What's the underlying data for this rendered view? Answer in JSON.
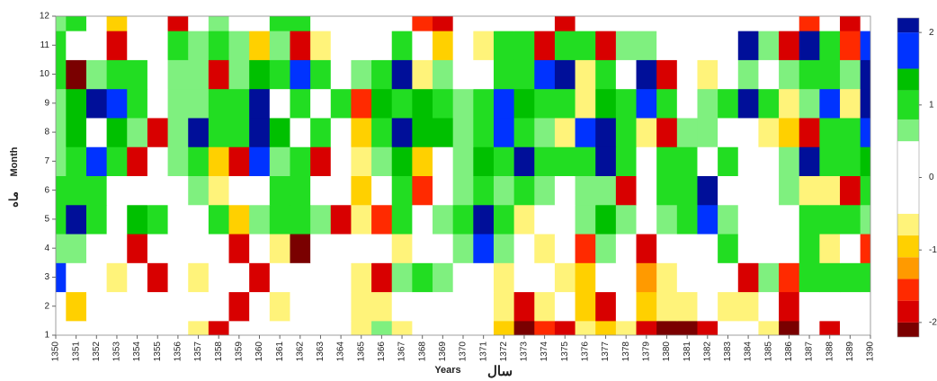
{
  "chart_data": {
    "type": "contour",
    "x_label": "Years",
    "x_label_fa": "سال",
    "y_label": "Month",
    "y_label_fa": "ماه",
    "x": [
      1350,
      1351,
      1352,
      1353,
      1354,
      1355,
      1356,
      1357,
      1358,
      1359,
      1360,
      1361,
      1362,
      1363,
      1364,
      1365,
      1366,
      1367,
      1368,
      1369,
      1370,
      1371,
      1372,
      1373,
      1374,
      1375,
      1376,
      1377,
      1378,
      1379,
      1380,
      1381,
      1382,
      1383,
      1384,
      1385,
      1386,
      1387,
      1388,
      1389,
      1390
    ],
    "y": [
      1,
      2,
      3,
      4,
      5,
      6,
      7,
      8,
      9,
      10,
      11,
      12
    ],
    "xlim": [
      1350,
      1390
    ],
    "ylim": [
      1,
      12
    ],
    "xticks": [
      1350,
      1351,
      1352,
      1353,
      1354,
      1355,
      1356,
      1357,
      1358,
      1359,
      1360,
      1361,
      1362,
      1363,
      1364,
      1365,
      1366,
      1367,
      1368,
      1369,
      1370,
      1371,
      1372,
      1373,
      1374,
      1375,
      1376,
      1377,
      1378,
      1379,
      1380,
      1381,
      1382,
      1383,
      1384,
      1385,
      1386,
      1387,
      1388,
      1389,
      1390
    ],
    "yticks": [
      1,
      2,
      3,
      4,
      5,
      6,
      7,
      8,
      9,
      10,
      11,
      12
    ],
    "z": [
      [
        0,
        0,
        0,
        0,
        0,
        0,
        0,
        -0.8,
        -2,
        0,
        0,
        0,
        0,
        0,
        0,
        -0.8,
        0.6,
        -0.7,
        0,
        0,
        0,
        0,
        -1,
        -2.5,
        -1.5,
        -2,
        -0.7,
        -1,
        -0.8,
        -2,
        -2.5,
        -2.5,
        -2,
        0,
        0,
        -0.8,
        -2.5,
        0,
        -2,
        0,
        0
      ],
      [
        0,
        -1,
        0,
        0,
        0,
        0,
        0,
        0,
        0,
        -2,
        0,
        -0.7,
        0,
        0,
        0,
        -0.8,
        -0.7,
        0,
        0,
        0,
        0,
        0,
        -0.6,
        -2,
        -0.7,
        0,
        -1,
        -2,
        0,
        -1,
        -0.8,
        -0.7,
        0,
        -0.7,
        -0.7,
        0,
        -2,
        0,
        0,
        0,
        0
      ],
      [
        1.5,
        0,
        0,
        -0.6,
        0,
        -2,
        0,
        -0.7,
        0,
        0,
        -2,
        0,
        0,
        0,
        0,
        -0.8,
        -2,
        0.7,
        0.8,
        0.7,
        0,
        0,
        -0.8,
        0,
        0,
        -0.7,
        -1,
        0,
        0,
        -1.2,
        -0.8,
        0,
        0,
        0,
        -2,
        0.7,
        -1.5,
        1,
        0.8,
        1,
        1
      ],
      [
        0.7,
        0.6,
        0,
        0,
        -2,
        0,
        0,
        0,
        0,
        -2,
        0,
        -0.7,
        -2.2,
        0,
        0,
        0,
        0,
        -0.8,
        0,
        0,
        0.6,
        1.5,
        0.7,
        0,
        -0.6,
        0,
        -1.5,
        0.7,
        0,
        -2,
        0,
        0,
        0,
        0.8,
        0,
        0,
        0,
        0.8,
        -0.8,
        0,
        -1.5
      ],
      [
        1,
        2,
        0.8,
        0,
        1.2,
        1,
        0,
        0,
        1,
        -1,
        0.7,
        0.8,
        1,
        0.7,
        -2,
        -0.7,
        -1.5,
        1,
        0,
        0.6,
        1,
        2,
        1,
        -0.6,
        0,
        0,
        0.7,
        1.2,
        0.7,
        0,
        0.7,
        1,
        1.5,
        0.7,
        0,
        0,
        0,
        0.8,
        1,
        0.8,
        0.7
      ],
      [
        1,
        1,
        0.8,
        0,
        0,
        0,
        0,
        0.7,
        -0.7,
        0,
        0,
        1,
        1,
        0,
        0,
        -1,
        0,
        1,
        -1.5,
        0,
        0.7,
        1,
        0.7,
        1,
        0.7,
        0,
        0.7,
        0.7,
        -2,
        0,
        1,
        0.8,
        2,
        0,
        0,
        0,
        0.7,
        -0.7,
        -0.8,
        -2,
        0.8
      ],
      [
        0.7,
        1,
        1.5,
        0.8,
        -2,
        0,
        0.7,
        1,
        -1,
        -2,
        1.5,
        0.7,
        1,
        -2,
        0,
        -0.8,
        0.7,
        1.2,
        -1,
        0,
        0.6,
        1.2,
        1,
        2,
        1,
        0.8,
        1,
        2,
        1,
        0,
        1,
        1,
        0,
        0.8,
        0,
        0,
        0.7,
        2,
        1,
        0.8,
        1.2
      ],
      [
        0.7,
        1.2,
        0,
        1.2,
        0.7,
        -2,
        0.7,
        2,
        0.8,
        0.8,
        2,
        1.2,
        0,
        1,
        0,
        -1,
        1,
        2,
        1.2,
        1.2,
        0.6,
        1,
        1.5,
        1,
        0.6,
        -0.7,
        1.5,
        2,
        1,
        -0.8,
        -2,
        0.7,
        0.7,
        0,
        0,
        -0.7,
        -1,
        -2,
        1,
        0.8,
        1.5
      ],
      [
        0.7,
        1.2,
        2,
        1.5,
        1,
        0,
        0.7,
        0.7,
        0.8,
        0.8,
        2,
        0,
        1,
        0,
        0.8,
        -1.5,
        1.2,
        1,
        1.2,
        1,
        0.6,
        1,
        1.5,
        1.2,
        1,
        1,
        -0.7,
        1.2,
        0.8,
        1.5,
        0.8,
        0,
        0.7,
        0.8,
        2,
        1,
        -0.8,
        0.7,
        1.5,
        -0.7,
        2
      ],
      [
        0.8,
        -2.5,
        0.7,
        1,
        0.8,
        0,
        0.7,
        0.7,
        -2,
        0.7,
        1.2,
        1,
        1.5,
        0.8,
        0,
        0.5,
        1,
        2,
        -0.8,
        0.7,
        0,
        0,
        1,
        1,
        1.5,
        2,
        -0.6,
        0.8,
        0,
        2,
        -2,
        0,
        -0.7,
        0,
        0.7,
        0,
        0.7,
        1,
        1,
        0.7,
        2
      ],
      [
        1,
        0,
        0,
        -2,
        0,
        0,
        0.8,
        0.6,
        1,
        0.6,
        -1,
        0.7,
        -2,
        -0.8,
        0,
        0,
        0,
        1,
        0,
        -1,
        0,
        -0.7,
        1,
        0.8,
        -2,
        0.8,
        1,
        -2,
        0.7,
        0.7,
        0,
        0,
        0,
        0,
        2,
        0.7,
        -2,
        2,
        0.8,
        -1.5,
        1.5
      ],
      [
        0.6,
        1,
        0,
        -1,
        0,
        0,
        -2,
        0,
        0.5,
        0,
        0,
        0.8,
        1,
        0,
        0,
        0,
        0,
        0,
        -1.5,
        -2,
        0,
        0,
        0,
        0,
        0,
        -2,
        0,
        0,
        0,
        0,
        0,
        0,
        0,
        0,
        0,
        0,
        0,
        -1.5,
        0,
        -2,
        0
      ]
    ],
    "colorbar": {
      "levels": [
        -2.2,
        -2,
        -1.7,
        -1.4,
        -1.1,
        -0.8,
        -0.5,
        0.5,
        0.8,
        1.2,
        1.5,
        2,
        2.2
      ],
      "colors": [
        "#7a0000",
        "#d80000",
        "#ff2a00",
        "#ff9a00",
        "#ffd000",
        "#fff37a",
        "#ffffff",
        "#7ff07f",
        "#22dd22",
        "#00c000",
        "#0033ff",
        "#000f99"
      ],
      "ticks": [
        2,
        1,
        0,
        -1,
        -2
      ]
    }
  }
}
